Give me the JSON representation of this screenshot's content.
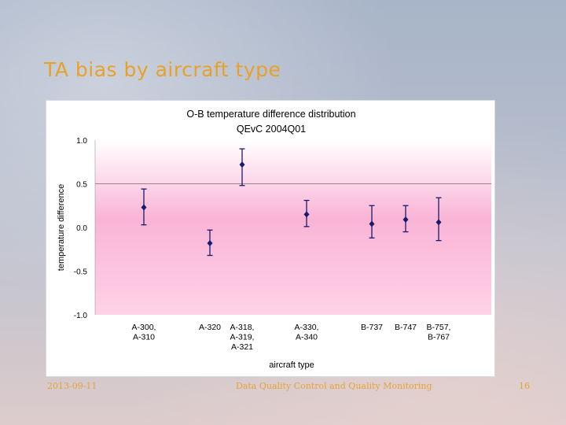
{
  "slide": {
    "title": "TA bias by aircraft type",
    "footer_date": "2013-09-11",
    "footer_center": "Data Quality Control and Quality Monitoring",
    "page_number": "16"
  },
  "chart_data": {
    "type": "scatter",
    "title": "O-B temperature difference distribution",
    "subtitle": "QEvC 2004Q01",
    "xlabel": "aircraft type",
    "ylabel": "temperature difference",
    "ylim": [
      -1.0,
      1.0
    ],
    "yticks": [
      "1.0",
      "0.5",
      "0.0",
      "-0.5",
      "-1.0"
    ],
    "grid": "horizontal line at 0.5",
    "categories": [
      [
        "A-300,",
        "A-310"
      ],
      [
        "A-320"
      ],
      [
        "A-318,",
        "A-319,",
        "A-321"
      ],
      [
        "A-330,",
        "A-340"
      ],
      [
        "B-737"
      ],
      [
        "B-747"
      ],
      [
        "B-757,",
        "B-767"
      ]
    ],
    "values": [
      0.23,
      -0.18,
      0.72,
      0.15,
      0.04,
      0.09,
      0.06
    ],
    "error_low": [
      0.03,
      -0.32,
      0.48,
      0.01,
      -0.12,
      -0.05,
      -0.15
    ],
    "error_high": [
      0.44,
      -0.03,
      0.9,
      0.31,
      0.25,
      0.25,
      0.34
    ],
    "colors": {
      "band_top": "#ffffff",
      "band_mid": "#f9b4d6",
      "band_bottom": "#ffd2e6",
      "marker": "#1a1a6e",
      "text": "#000000"
    }
  }
}
